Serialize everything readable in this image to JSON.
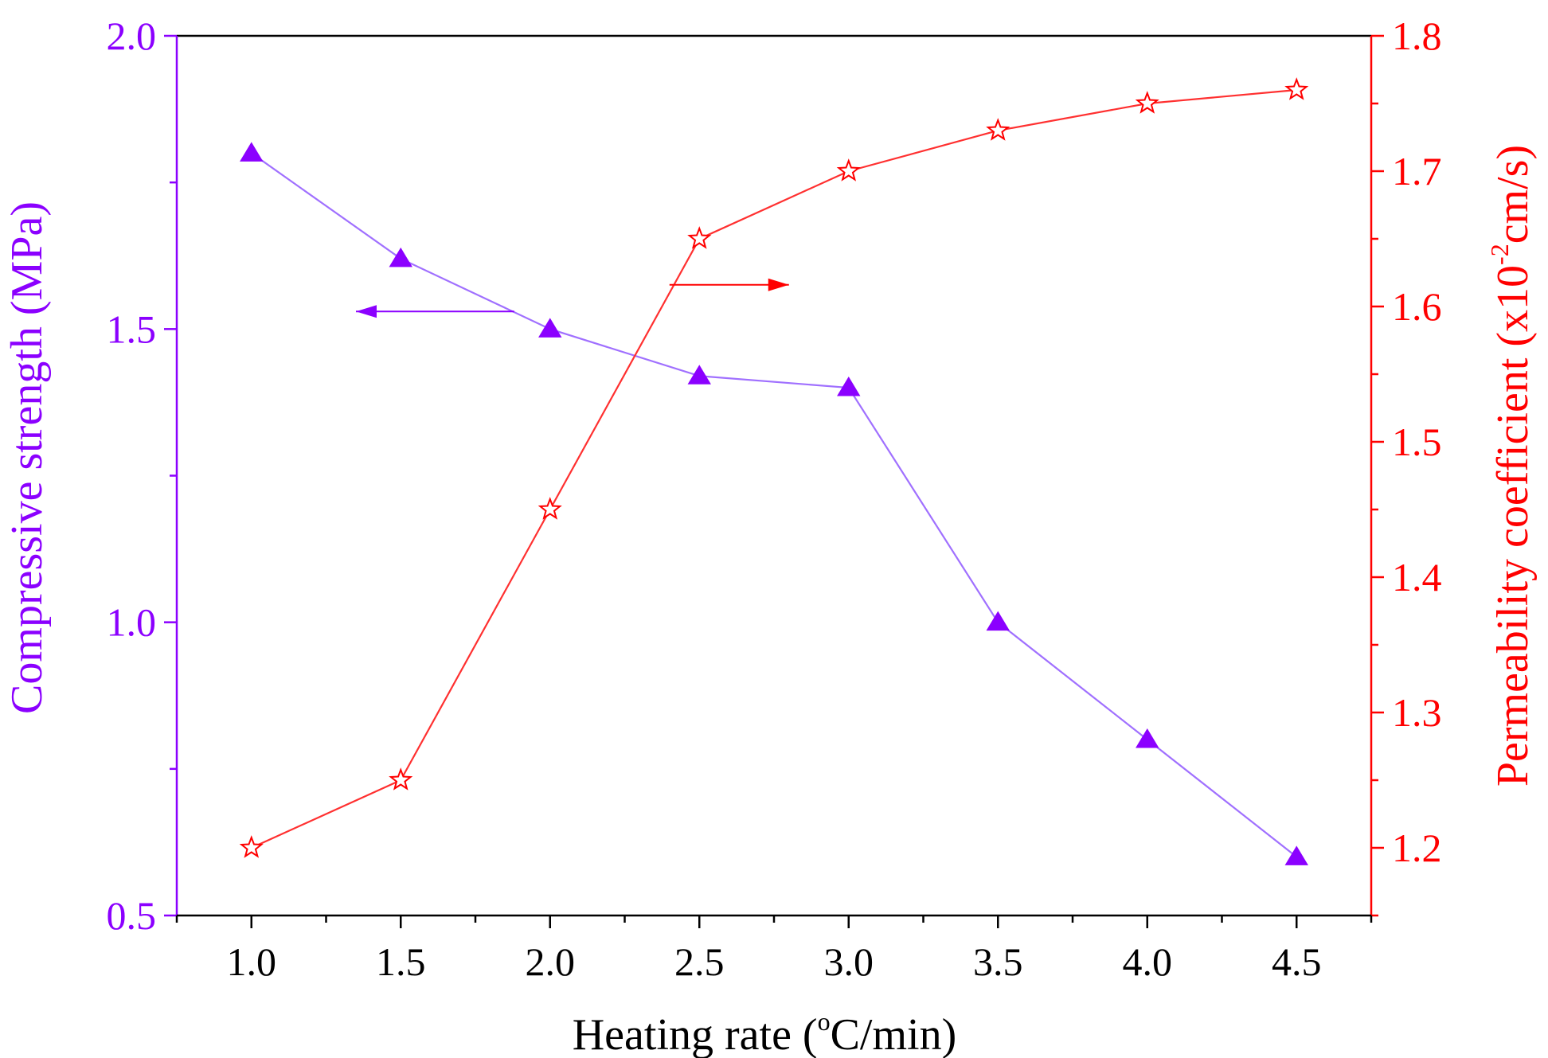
{
  "chart_data": {
    "type": "line",
    "x": [
      1.0,
      1.5,
      2.0,
      2.5,
      3.0,
      3.5,
      4.0,
      4.5
    ],
    "x_tick_labels": [
      "1.0",
      "1.5",
      "2.0",
      "2.5",
      "3.0",
      "3.5",
      "4.0",
      "4.5"
    ],
    "xlabel": {
      "pre": "Heating rate (",
      "sup": "o",
      "post": "C/min)"
    },
    "xlim": [
      0.75,
      4.75
    ],
    "y_left": {
      "label": "Compressive strength (MPa)",
      "lim": [
        0.5,
        2.0
      ],
      "ticks": [
        0.5,
        1.0,
        1.5,
        2.0
      ],
      "tick_labels": [
        "0.5",
        "1.0",
        "1.5",
        "2.0"
      ],
      "color": "#8B00FF"
    },
    "y_right": {
      "label": {
        "pre": "Permeability coefficient (x10",
        "sup": "-2",
        "post": "cm/s)"
      },
      "lim": [
        1.15,
        1.8
      ],
      "ticks": [
        1.2,
        1.3,
        1.4,
        1.5,
        1.6,
        1.7,
        1.8
      ],
      "tick_labels": [
        "1.2",
        "1.3",
        "1.4",
        "1.5",
        "1.6",
        "1.7",
        "1.8"
      ],
      "color": "#FF0000"
    },
    "series": [
      {
        "axis": "left",
        "marker": "triangle",
        "color": "#8B00FF",
        "line_color": "#A070FF",
        "values": [
          1.8,
          1.62,
          1.5,
          1.42,
          1.4,
          1.0,
          0.8,
          0.6
        ]
      },
      {
        "axis": "right",
        "marker": "star-open",
        "color": "#FF0000",
        "line_color": "#FF3030",
        "values": [
          1.2,
          1.25,
          1.45,
          1.65,
          1.7,
          1.73,
          1.75,
          1.76
        ]
      }
    ],
    "annotations": [
      {
        "type": "arrow",
        "direction": "left",
        "series_axis": "left",
        "from": [
          1.88,
          1.53
        ],
        "to": [
          1.35,
          1.53
        ]
      },
      {
        "type": "arrow",
        "direction": "right",
        "series_axis": "right",
        "from": [
          2.4,
          1.616
        ],
        "to": [
          2.8,
          1.616
        ]
      }
    ],
    "grid": false,
    "legend": "none"
  }
}
